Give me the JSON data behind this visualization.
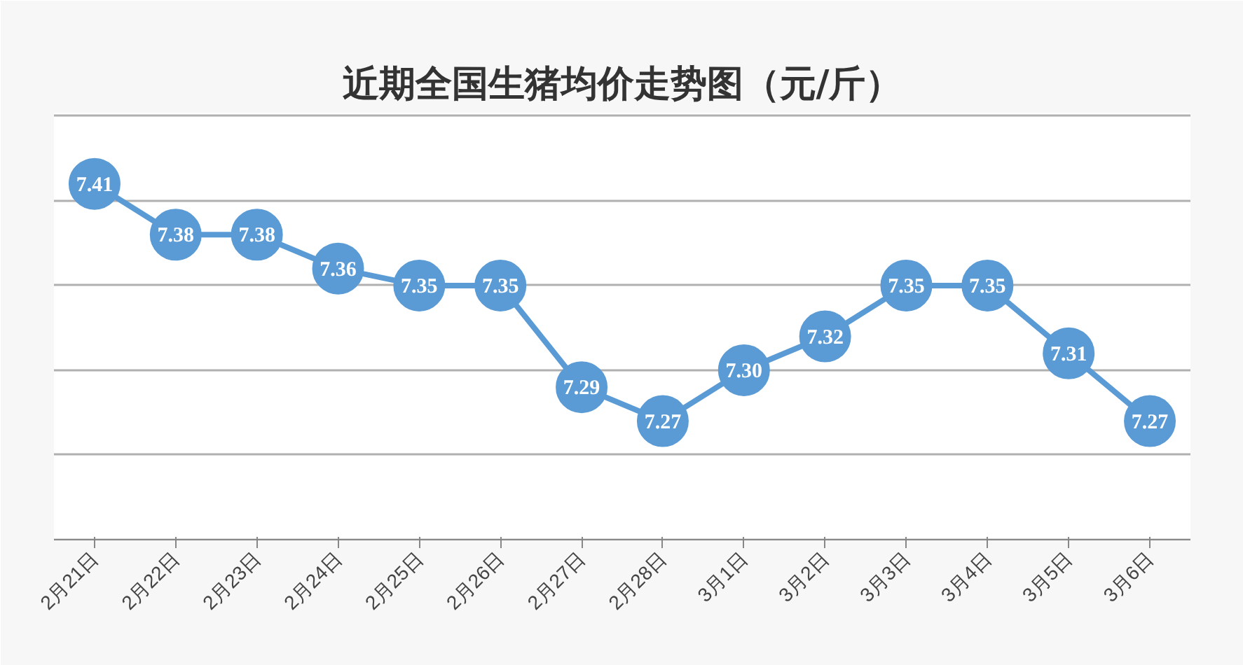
{
  "chart_data": {
    "type": "line",
    "title": "近期全国生猪均价走势图（元/斤）",
    "categories": [
      "2月21日",
      "2月22日",
      "2月23日",
      "2月24日",
      "2月25日",
      "2月26日",
      "2月27日",
      "2月28日",
      "3月1日",
      "3月2日",
      "3月3日",
      "3月4日",
      "3月5日",
      "3月6日"
    ],
    "series": [
      {
        "color": "#5b9bd5",
        "values": [
          7.41,
          7.38,
          7.38,
          7.36,
          7.35,
          7.35,
          7.29,
          7.27,
          7.3,
          7.32,
          7.35,
          7.35,
          7.31,
          7.27
        ],
        "value_labels": [
          "7.41",
          "7.38",
          "7.38",
          "7.36",
          "7.35",
          "7.35",
          "7.29",
          "7.27",
          "7.30",
          "7.32",
          "7.35",
          "7.35",
          "7.31",
          "7.27"
        ]
      }
    ],
    "tick_labels": "x",
    "grid": "y",
    "marker": "circle",
    "line_style": "solid"
  }
}
